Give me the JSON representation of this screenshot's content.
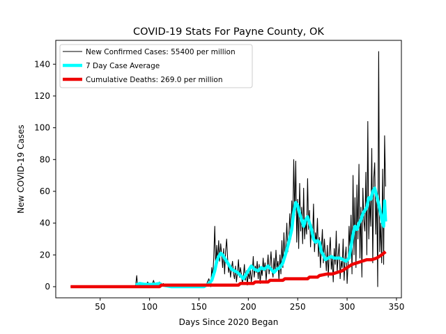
{
  "chart_data": {
    "type": "line",
    "title": "COVID-19 Stats For Payne County, OK",
    "xlabel": "Days Since 2020 Began",
    "ylabel": "New COVID-19 Cases",
    "xlim": [
      5,
      355
    ],
    "ylim": [
      -7,
      155
    ],
    "xticks": [
      50,
      100,
      150,
      200,
      250,
      300,
      350
    ],
    "yticks": [
      0,
      20,
      40,
      60,
      80,
      100,
      120,
      140
    ],
    "grid": false,
    "legend_position": "top-left",
    "series": [
      {
        "name": "New Confirmed Cases: 55400 per million",
        "color": "#000000",
        "style": "thin",
        "points": [
          [
            20,
            0
          ],
          [
            70,
            0
          ],
          [
            75,
            0
          ],
          [
            80,
            0
          ],
          [
            84,
            0
          ],
          [
            86,
            1
          ],
          [
            87,
            7
          ],
          [
            88,
            0
          ],
          [
            90,
            1
          ],
          [
            92,
            0
          ],
          [
            94,
            2
          ],
          [
            96,
            0
          ],
          [
            98,
            3
          ],
          [
            100,
            1
          ],
          [
            102,
            0
          ],
          [
            104,
            4
          ],
          [
            106,
            0
          ],
          [
            108,
            1
          ],
          [
            110,
            3
          ],
          [
            112,
            0
          ],
          [
            114,
            2
          ],
          [
            116,
            0
          ],
          [
            118,
            1
          ],
          [
            120,
            0
          ],
          [
            125,
            1
          ],
          [
            130,
            0
          ],
          [
            135,
            1
          ],
          [
            140,
            0
          ],
          [
            145,
            0
          ],
          [
            150,
            1
          ],
          [
            155,
            0
          ],
          [
            158,
            2
          ],
          [
            160,
            5
          ],
          [
            162,
            0
          ],
          [
            163,
            12
          ],
          [
            164,
            6
          ],
          [
            165,
            18
          ],
          [
            166,
            38
          ],
          [
            167,
            10
          ],
          [
            168,
            26
          ],
          [
            169,
            15
          ],
          [
            170,
            29
          ],
          [
            171,
            16
          ],
          [
            172,
            27
          ],
          [
            173,
            20
          ],
          [
            174,
            12
          ],
          [
            175,
            24
          ],
          [
            176,
            8
          ],
          [
            177,
            22
          ],
          [
            178,
            30
          ],
          [
            179,
            18
          ],
          [
            180,
            9
          ],
          [
            181,
            14
          ],
          [
            182,
            6
          ],
          [
            183,
            12
          ],
          [
            184,
            16
          ],
          [
            185,
            8
          ],
          [
            186,
            5
          ],
          [
            187,
            13
          ],
          [
            188,
            3
          ],
          [
            189,
            9
          ],
          [
            190,
            17
          ],
          [
            191,
            6
          ],
          [
            192,
            12
          ],
          [
            193,
            8
          ],
          [
            194,
            2
          ],
          [
            195,
            7
          ],
          [
            196,
            14
          ],
          [
            197,
            4
          ],
          [
            198,
            10
          ],
          [
            199,
            1
          ],
          [
            200,
            9
          ],
          [
            201,
            5
          ],
          [
            202,
            11
          ],
          [
            203,
            3
          ],
          [
            204,
            8
          ],
          [
            205,
            19
          ],
          [
            206,
            6
          ],
          [
            207,
            13
          ],
          [
            208,
            9
          ],
          [
            209,
            16
          ],
          [
            210,
            5
          ],
          [
            211,
            14
          ],
          [
            212,
            2
          ],
          [
            213,
            11
          ],
          [
            214,
            7
          ],
          [
            215,
            18
          ],
          [
            216,
            10
          ],
          [
            217,
            15
          ],
          [
            218,
            4
          ],
          [
            219,
            12
          ],
          [
            220,
            20
          ],
          [
            221,
            8
          ],
          [
            222,
            14
          ],
          [
            223,
            22
          ],
          [
            224,
            10
          ],
          [
            225,
            6
          ],
          [
            226,
            18
          ],
          [
            227,
            9
          ],
          [
            228,
            23
          ],
          [
            229,
            12
          ],
          [
            230,
            16
          ],
          [
            231,
            4
          ],
          [
            232,
            20
          ],
          [
            233,
            8
          ],
          [
            234,
            29
          ],
          [
            235,
            12
          ],
          [
            236,
            34
          ],
          [
            237,
            18
          ],
          [
            238,
            26
          ],
          [
            239,
            40
          ],
          [
            240,
            22
          ],
          [
            241,
            31
          ],
          [
            242,
            46
          ],
          [
            243,
            30
          ],
          [
            244,
            54
          ],
          [
            245,
            38
          ],
          [
            246,
            80
          ],
          [
            247,
            45
          ],
          [
            248,
            79
          ],
          [
            249,
            28
          ],
          [
            250,
            55
          ],
          [
            251,
            24
          ],
          [
            252,
            65
          ],
          [
            253,
            35
          ],
          [
            254,
            50
          ],
          [
            255,
            27
          ],
          [
            256,
            62
          ],
          [
            257,
            30
          ],
          [
            258,
            41
          ],
          [
            259,
            33
          ],
          [
            260,
            68
          ],
          [
            261,
            36
          ],
          [
            262,
            48
          ],
          [
            263,
            25
          ],
          [
            264,
            39
          ],
          [
            265,
            30
          ],
          [
            266,
            52
          ],
          [
            267,
            22
          ],
          [
            268,
            34
          ],
          [
            269,
            27
          ],
          [
            270,
            43
          ],
          [
            271,
            19
          ],
          [
            272,
            31
          ],
          [
            273,
            12
          ],
          [
            274,
            24
          ],
          [
            275,
            36
          ],
          [
            276,
            15
          ],
          [
            277,
            30
          ],
          [
            278,
            20
          ],
          [
            279,
            10
          ],
          [
            280,
            26
          ],
          [
            281,
            6
          ],
          [
            282,
            22
          ],
          [
            283,
            31
          ],
          [
            284,
            11
          ],
          [
            285,
            18
          ],
          [
            286,
            3
          ],
          [
            287,
            24
          ],
          [
            288,
            14
          ],
          [
            289,
            35
          ],
          [
            290,
            9
          ],
          [
            291,
            20
          ],
          [
            292,
            27
          ],
          [
            293,
            5
          ],
          [
            294,
            16
          ],
          [
            295,
            12
          ],
          [
            296,
            30
          ],
          [
            297,
            4
          ],
          [
            298,
            18
          ],
          [
            299,
            25
          ],
          [
            300,
            2
          ],
          [
            301,
            14
          ],
          [
            302,
            38
          ],
          [
            303,
            22
          ],
          [
            304,
            45
          ],
          [
            305,
            8
          ],
          [
            306,
            70
          ],
          [
            307,
            20
          ],
          [
            308,
            56
          ],
          [
            309,
            12
          ],
          [
            310,
            64
          ],
          [
            311,
            30
          ],
          [
            312,
            77
          ],
          [
            313,
            18
          ],
          [
            314,
            50
          ],
          [
            315,
            6
          ],
          [
            316,
            62
          ],
          [
            317,
            42
          ],
          [
            318,
            35
          ],
          [
            319,
            72
          ],
          [
            320,
            20
          ],
          [
            321,
            104
          ],
          [
            322,
            30
          ],
          [
            323,
            55
          ],
          [
            324,
            38
          ],
          [
            325,
            87
          ],
          [
            326,
            15
          ],
          [
            327,
            68
          ],
          [
            328,
            78
          ],
          [
            329,
            33
          ],
          [
            330,
            60
          ],
          [
            331,
            0
          ],
          [
            332,
            148
          ],
          [
            333,
            22
          ],
          [
            334,
            40
          ],
          [
            335,
            15
          ],
          [
            336,
            74
          ],
          [
            337,
            14
          ],
          [
            338,
            95
          ],
          [
            339,
            63
          ]
        ]
      },
      {
        "name": "7 Day Case Average",
        "color": "#00ffff",
        "style": "thick",
        "points": [
          [
            86,
            1
          ],
          [
            90,
            2
          ],
          [
            95,
            1.5
          ],
          [
            100,
            1.5
          ],
          [
            105,
            1.5
          ],
          [
            110,
            2
          ],
          [
            113,
            1
          ],
          [
            118,
            0.5
          ],
          [
            122,
            0
          ],
          [
            130,
            0
          ],
          [
            140,
            0
          ],
          [
            150,
            0
          ],
          [
            155,
            0
          ],
          [
            160,
            2
          ],
          [
            163,
            4
          ],
          [
            166,
            10
          ],
          [
            168,
            16
          ],
          [
            170,
            19
          ],
          [
            172,
            21
          ],
          [
            174,
            20
          ],
          [
            176,
            18
          ],
          [
            178,
            16
          ],
          [
            180,
            14
          ],
          [
            183,
            11
          ],
          [
            186,
            10
          ],
          [
            189,
            9
          ],
          [
            192,
            7
          ],
          [
            195,
            5
          ],
          [
            198,
            8
          ],
          [
            200,
            10
          ],
          [
            203,
            13
          ],
          [
            206,
            11
          ],
          [
            210,
            10
          ],
          [
            213,
            12
          ],
          [
            216,
            11
          ],
          [
            220,
            13
          ],
          [
            223,
            11
          ],
          [
            226,
            9
          ],
          [
            229,
            11
          ],
          [
            232,
            12
          ],
          [
            235,
            15
          ],
          [
            238,
            21
          ],
          [
            241,
            28
          ],
          [
            244,
            36
          ],
          [
            246,
            47
          ],
          [
            248,
            53
          ],
          [
            250,
            51
          ],
          [
            252,
            46
          ],
          [
            254,
            42
          ],
          [
            256,
            38
          ],
          [
            258,
            42
          ],
          [
            260,
            44
          ],
          [
            262,
            40
          ],
          [
            264,
            36
          ],
          [
            266,
            30
          ],
          [
            268,
            28
          ],
          [
            270,
            29
          ],
          [
            272,
            28
          ],
          [
            274,
            22
          ],
          [
            276,
            20
          ],
          [
            278,
            17
          ],
          [
            281,
            18
          ],
          [
            284,
            19
          ],
          [
            287,
            18
          ],
          [
            290,
            18
          ],
          [
            293,
            18
          ],
          [
            296,
            17
          ],
          [
            299,
            16
          ],
          [
            302,
            18
          ],
          [
            304,
            25
          ],
          [
            306,
            33
          ],
          [
            308,
            38
          ],
          [
            310,
            36
          ],
          [
            312,
            40
          ],
          [
            314,
            42
          ],
          [
            316,
            46
          ],
          [
            318,
            48
          ],
          [
            320,
            50
          ],
          [
            322,
            56
          ],
          [
            324,
            55
          ],
          [
            326,
            60
          ],
          [
            328,
            62
          ],
          [
            330,
            57
          ],
          [
            332,
            52
          ],
          [
            334,
            46
          ],
          [
            336,
            40
          ],
          [
            337,
            38
          ],
          [
            338,
            54
          ],
          [
            339,
            41
          ]
        ]
      },
      {
        "name": "Cumulative Deaths: 269.0 per million",
        "color": "#ee0000",
        "style": "thick",
        "points": [
          [
            20,
            0
          ],
          [
            110,
            0
          ],
          [
            112,
            1
          ],
          [
            155,
            1
          ],
          [
            190,
            1
          ],
          [
            192,
            2
          ],
          [
            205,
            2
          ],
          [
            207,
            3
          ],
          [
            220,
            3
          ],
          [
            222,
            4
          ],
          [
            235,
            4
          ],
          [
            237,
            5
          ],
          [
            260,
            5
          ],
          [
            262,
            6
          ],
          [
            270,
            6
          ],
          [
            272,
            7
          ],
          [
            280,
            8
          ],
          [
            285,
            8
          ],
          [
            290,
            9
          ],
          [
            295,
            10
          ],
          [
            300,
            12
          ],
          [
            305,
            14
          ],
          [
            310,
            15
          ],
          [
            315,
            16
          ],
          [
            320,
            17
          ],
          [
            325,
            17
          ],
          [
            330,
            18
          ],
          [
            335,
            20
          ],
          [
            339,
            22
          ]
        ]
      }
    ]
  }
}
